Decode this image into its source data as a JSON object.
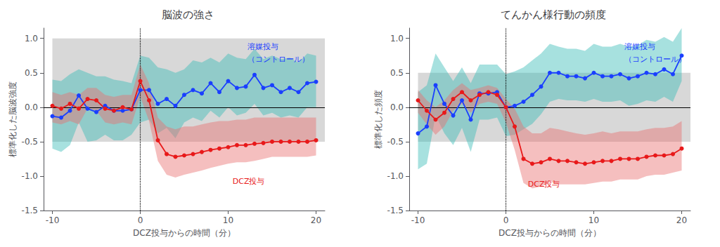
{
  "chart_data": [
    {
      "type": "line",
      "title": "脳波の強さ",
      "xlabel": "DCZ投与からの時間（分）",
      "ylabel": "標準化した脳波強度",
      "xlim": [
        -11,
        21
      ],
      "ylim": [
        -1.5,
        1.15
      ],
      "xticks": [
        -10,
        0,
        10,
        20
      ],
      "yticks": [
        -1.5,
        {
          "value": -1.0,
          "label": "-1.0"
        },
        -0.5,
        {
          "value": 0.0,
          "label": "0.0"
        },
        0.5,
        {
          "value": 1.0,
          "label": "1.0"
        }
      ],
      "grid": false,
      "x": [
        -10,
        -9,
        -8,
        -7,
        -6,
        -5,
        -4,
        -3,
        -2,
        -1,
        0,
        1,
        2,
        3,
        4,
        5,
        6,
        7,
        8,
        9,
        10,
        11,
        12,
        13,
        14,
        15,
        16,
        17,
        18,
        19,
        20
      ],
      "series": [
        {
          "color": "#1a3fff",
          "band_color": "#3bbcb8",
          "marker": "circle",
          "values": [
            -0.13,
            -0.15,
            -0.05,
            0.17,
            -0.02,
            -0.07,
            0.02,
            -0.05,
            -0.05,
            -0.03,
            0.25,
            0.25,
            0.05,
            0.12,
            0.02,
            0.18,
            0.25,
            0.2,
            0.35,
            0.22,
            0.38,
            0.28,
            0.3,
            0.47,
            0.28,
            0.32,
            0.22,
            0.28,
            0.22,
            0.35,
            0.37
          ],
          "upper": [
            0.4,
            0.38,
            0.48,
            0.55,
            0.5,
            0.45,
            0.45,
            0.4,
            0.38,
            0.35,
            0.75,
            0.72,
            0.58,
            0.55,
            0.5,
            0.55,
            0.68,
            0.65,
            0.72,
            0.65,
            0.78,
            0.72,
            0.7,
            0.85,
            0.7,
            0.75,
            0.7,
            0.72,
            0.65,
            0.78,
            0.75
          ],
          "lower": [
            -0.6,
            -0.65,
            -0.55,
            -0.22,
            -0.5,
            -0.48,
            -0.4,
            -0.48,
            -0.48,
            -0.4,
            -0.22,
            -0.18,
            -0.38,
            -0.3,
            -0.45,
            -0.22,
            -0.15,
            -0.2,
            -0.05,
            -0.15,
            0.0,
            -0.12,
            -0.08,
            0.05,
            -0.12,
            -0.08,
            -0.15,
            -0.12,
            -0.15,
            0.0,
            0.0
          ]
        },
        {
          "color": "#e8191a",
          "band_color": "#e87070",
          "marker": "circle",
          "values": [
            0.02,
            -0.02,
            0.05,
            -0.02,
            0.12,
            0.1,
            -0.02,
            -0.05,
            0.0,
            -0.03,
            0.38,
            0.1,
            -0.48,
            -0.68,
            -0.72,
            -0.7,
            -0.68,
            -0.65,
            -0.62,
            -0.6,
            -0.58,
            -0.55,
            -0.55,
            -0.53,
            -0.52,
            -0.5,
            -0.5,
            -0.5,
            -0.5,
            -0.5,
            -0.48
          ],
          "upper": [
            0.22,
            0.18,
            0.22,
            0.18,
            0.28,
            0.28,
            0.18,
            0.15,
            0.18,
            0.18,
            0.62,
            0.35,
            -0.15,
            -0.28,
            -0.32,
            -0.28,
            -0.28,
            -0.25,
            -0.22,
            -0.2,
            -0.2,
            -0.18,
            -0.18,
            -0.15,
            -0.15,
            -0.15,
            -0.15,
            -0.15,
            -0.15,
            -0.15,
            -0.15
          ],
          "lower": [
            -0.22,
            -0.25,
            -0.2,
            -0.25,
            -0.02,
            -0.05,
            -0.22,
            -0.25,
            -0.22,
            -0.25,
            0.15,
            -0.2,
            -0.78,
            -0.98,
            -1.02,
            -0.98,
            -0.95,
            -0.92,
            -0.88,
            -0.85,
            -0.82,
            -0.8,
            -0.8,
            -0.78,
            -0.75,
            -0.72,
            -0.72,
            -0.72,
            -0.72,
            -0.72,
            -0.7
          ]
        }
      ],
      "shaded_region": {
        "x": [
          -10,
          21
        ],
        "y": [
          -0.5,
          1.0
        ],
        "color": "#d8d8d8"
      },
      "reference_lines": [
        {
          "axis": "y",
          "value": 0,
          "line_style": "solid"
        },
        {
          "axis": "x",
          "value": 0,
          "line_style": "dotted"
        }
      ],
      "annotations": [
        {
          "text": "溶媒投与",
          "x": 12.2,
          "y": 0.88,
          "color": "#1a3fff"
        },
        {
          "text": "（コントロール）",
          "x": 12.2,
          "y": 0.7,
          "color": "#1a3fff"
        },
        {
          "text": "DCZ投与",
          "x": 10.5,
          "y": -1.08,
          "color": "#e8191a"
        }
      ]
    },
    {
      "type": "line",
      "title": "てんかん様行動の頻度",
      "xlabel": "DCZ投与からの時間（分）",
      "ylabel": "標準化した頻度",
      "xlim": [
        -11,
        21
      ],
      "ylim": [
        -1.5,
        1.15
      ],
      "xticks": [
        -10,
        0,
        10,
        20
      ],
      "yticks": [
        -1.5,
        {
          "value": -1.0,
          "label": "-1.0"
        },
        -0.5,
        {
          "value": 0.0,
          "label": "0.0"
        },
        0.5,
        {
          "value": 1.0,
          "label": "1.0"
        }
      ],
      "grid": false,
      "x": [
        -10,
        -9,
        -8,
        -7,
        -6,
        -5,
        -4,
        -3,
        -2,
        -1,
        0,
        1,
        2,
        3,
        4,
        5,
        6,
        7,
        8,
        9,
        10,
        11,
        12,
        13,
        14,
        15,
        16,
        17,
        18,
        19,
        20
      ],
      "series": [
        {
          "color": "#1a3fff",
          "band_color": "#3bbcb8",
          "marker": "circle",
          "values": [
            -0.38,
            -0.28,
            0.32,
            0.05,
            -0.12,
            0.1,
            -0.18,
            0.2,
            0.2,
            0.22,
            0.0,
            0.02,
            0.08,
            0.18,
            0.3,
            0.5,
            0.5,
            0.45,
            0.45,
            0.42,
            0.5,
            0.45,
            0.45,
            0.48,
            0.42,
            0.45,
            0.5,
            0.48,
            0.55,
            0.48,
            0.75
          ],
          "upper": [
            0.22,
            0.32,
            0.78,
            0.58,
            0.38,
            0.58,
            0.35,
            0.62,
            0.62,
            0.62,
            0.48,
            0.52,
            0.58,
            0.68,
            0.78,
            0.92,
            0.88,
            0.85,
            0.85,
            0.82,
            0.92,
            0.88,
            0.88,
            0.92,
            0.88,
            0.9,
            0.98,
            0.95,
            1.02,
            0.95,
            1.15
          ],
          "lower": [
            -0.9,
            -0.82,
            -0.12,
            -0.38,
            -0.55,
            -0.3,
            -0.65,
            -0.18,
            -0.18,
            -0.15,
            -0.42,
            -0.4,
            -0.32,
            -0.24,
            -0.1,
            0.08,
            0.12,
            0.1,
            0.1,
            0.08,
            0.12,
            0.08,
            0.08,
            0.1,
            0.02,
            0.05,
            0.1,
            0.08,
            0.15,
            0.08,
            0.38
          ]
        },
        {
          "color": "#e8191a",
          "band_color": "#e87070",
          "marker": "circle",
          "values": [
            0.1,
            -0.05,
            -0.18,
            -0.08,
            0.12,
            0.22,
            0.1,
            0.18,
            0.22,
            0.18,
            0.0,
            -0.28,
            -0.75,
            -0.82,
            -0.8,
            -0.75,
            -0.78,
            -0.78,
            -0.8,
            -0.82,
            -0.8,
            -0.78,
            -0.78,
            -0.75,
            -0.75,
            -0.75,
            -0.72,
            -0.7,
            -0.7,
            -0.68,
            -0.6
          ],
          "upper": [
            0.25,
            0.1,
            0.0,
            0.1,
            0.25,
            0.35,
            0.25,
            0.28,
            0.32,
            0.28,
            0.12,
            -0.02,
            -0.28,
            -0.38,
            -0.38,
            -0.3,
            -0.32,
            -0.35,
            -0.38,
            -0.4,
            -0.38,
            -0.35,
            -0.38,
            -0.35,
            -0.35,
            -0.35,
            -0.32,
            -0.3,
            -0.3,
            -0.28,
            -0.2
          ],
          "lower": [
            -0.08,
            -0.25,
            -0.4,
            -0.28,
            -0.05,
            0.05,
            -0.08,
            0.05,
            0.08,
            0.05,
            -0.22,
            -0.62,
            -1.1,
            -1.18,
            -1.15,
            -1.08,
            -1.12,
            -1.12,
            -1.12,
            -1.12,
            -1.1,
            -1.08,
            -1.08,
            -1.05,
            -1.05,
            -1.05,
            -1.0,
            -0.98,
            -0.98,
            -0.95,
            -0.92
          ]
        }
      ],
      "shaded_region": {
        "x": [
          -10,
          21
        ],
        "y": [
          -0.5,
          0.5
        ],
        "color": "#d8d8d8"
      },
      "reference_lines": [
        {
          "axis": "y",
          "value": 0,
          "line_style": "solid"
        },
        {
          "axis": "x",
          "value": 0,
          "line_style": "dotted"
        }
      ],
      "annotations": [
        {
          "text": "溶媒投与",
          "x": 13.5,
          "y": 0.88,
          "color": "#1a3fff"
        },
        {
          "text": "（コントロール）",
          "x": 13.5,
          "y": 0.7,
          "color": "#1a3fff"
        },
        {
          "text": "DCZ投与",
          "x": 2.5,
          "y": -1.12,
          "color": "#e8191a"
        }
      ]
    }
  ]
}
